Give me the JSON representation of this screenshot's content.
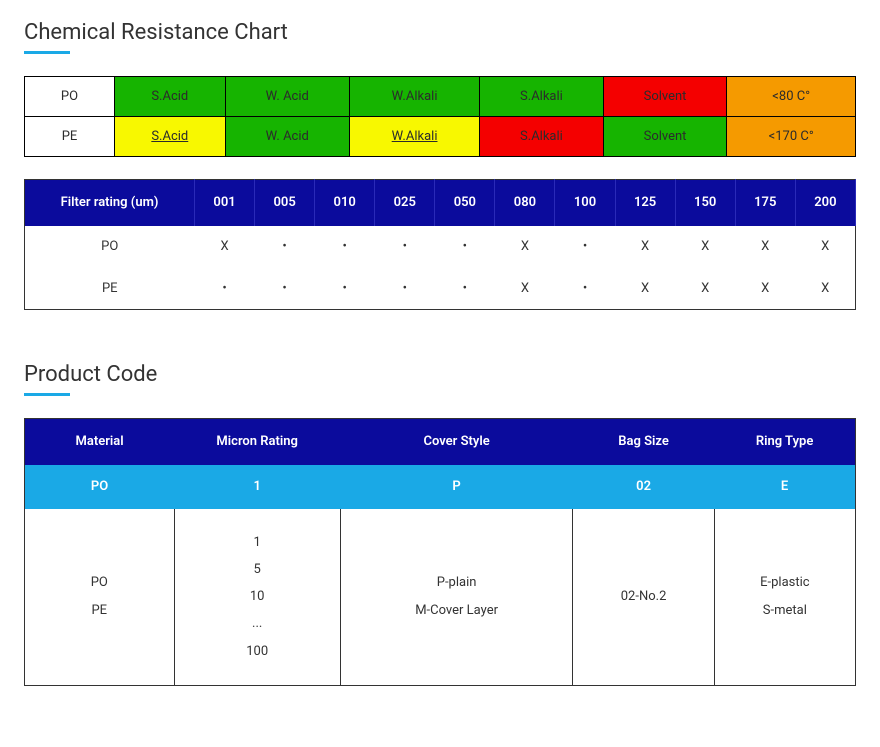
{
  "colors": {
    "green": "#16b400",
    "red": "#f40000",
    "yellow": "#f8f800",
    "orange": "#f59a00",
    "navy": "#0b0b9c",
    "blue": "#1aa9e6"
  },
  "chem": {
    "heading": "Chemical Resistance Chart",
    "rows": [
      {
        "label": "PO",
        "cells": [
          {
            "text": "S.Acid",
            "bg": "#16b400",
            "underline": false
          },
          {
            "text": "W. Acid",
            "bg": "#16b400",
            "underline": false
          },
          {
            "text": "W.Alkali",
            "bg": "#16b400",
            "underline": false
          },
          {
            "text": "S.Alkali",
            "bg": "#16b400",
            "underline": false
          },
          {
            "text": "Solvent",
            "bg": "#f40000",
            "underline": false
          },
          {
            "text": "<80 C°",
            "bg": "#f59a00",
            "underline": false
          }
        ]
      },
      {
        "label": "PE",
        "cells": [
          {
            "text": "S.Acid",
            "bg": "#f8f800",
            "underline": true
          },
          {
            "text": "W. Acid",
            "bg": "#16b400",
            "underline": false
          },
          {
            "text": "W.Alkali",
            "bg": "#f8f800",
            "underline": true
          },
          {
            "text": "S.Alkali",
            "bg": "#f40000",
            "underline": false
          },
          {
            "text": "Solvent",
            "bg": "#16b400",
            "underline": false
          },
          {
            "text": "<170 C°",
            "bg": "#f59a00",
            "underline": false
          }
        ]
      }
    ]
  },
  "rating": {
    "first_header": "Filter rating (um)",
    "columns": [
      "001",
      "005",
      "010",
      "025",
      "050",
      "080",
      "100",
      "125",
      "150",
      "175",
      "200"
    ],
    "rows": [
      {
        "label": "PO",
        "cells": [
          "X",
          "•",
          "•",
          "•",
          "•",
          "X",
          "•",
          "X",
          "X",
          "X",
          "X"
        ]
      },
      {
        "label": "PE",
        "cells": [
          "•",
          "•",
          "•",
          "•",
          "•",
          "X",
          "•",
          "X",
          "X",
          "X",
          "X"
        ]
      }
    ]
  },
  "product": {
    "heading": "Product Code",
    "headers": [
      "Material",
      "Micron Rating",
      "Cover Style",
      "Bag Size",
      "Ring Type"
    ],
    "selected": [
      "PO",
      "1",
      "P",
      "02",
      "E"
    ],
    "options": [
      [
        "PO",
        "PE"
      ],
      [
        "1",
        "5",
        "10",
        "...",
        "100"
      ],
      [
        "P-plain",
        "M-Cover Layer"
      ],
      [
        "02-No.2"
      ],
      [
        "E-plastic",
        "S-metal"
      ]
    ],
    "col_widths": [
      "18%",
      "20%",
      "28%",
      "17%",
      "17%"
    ]
  }
}
